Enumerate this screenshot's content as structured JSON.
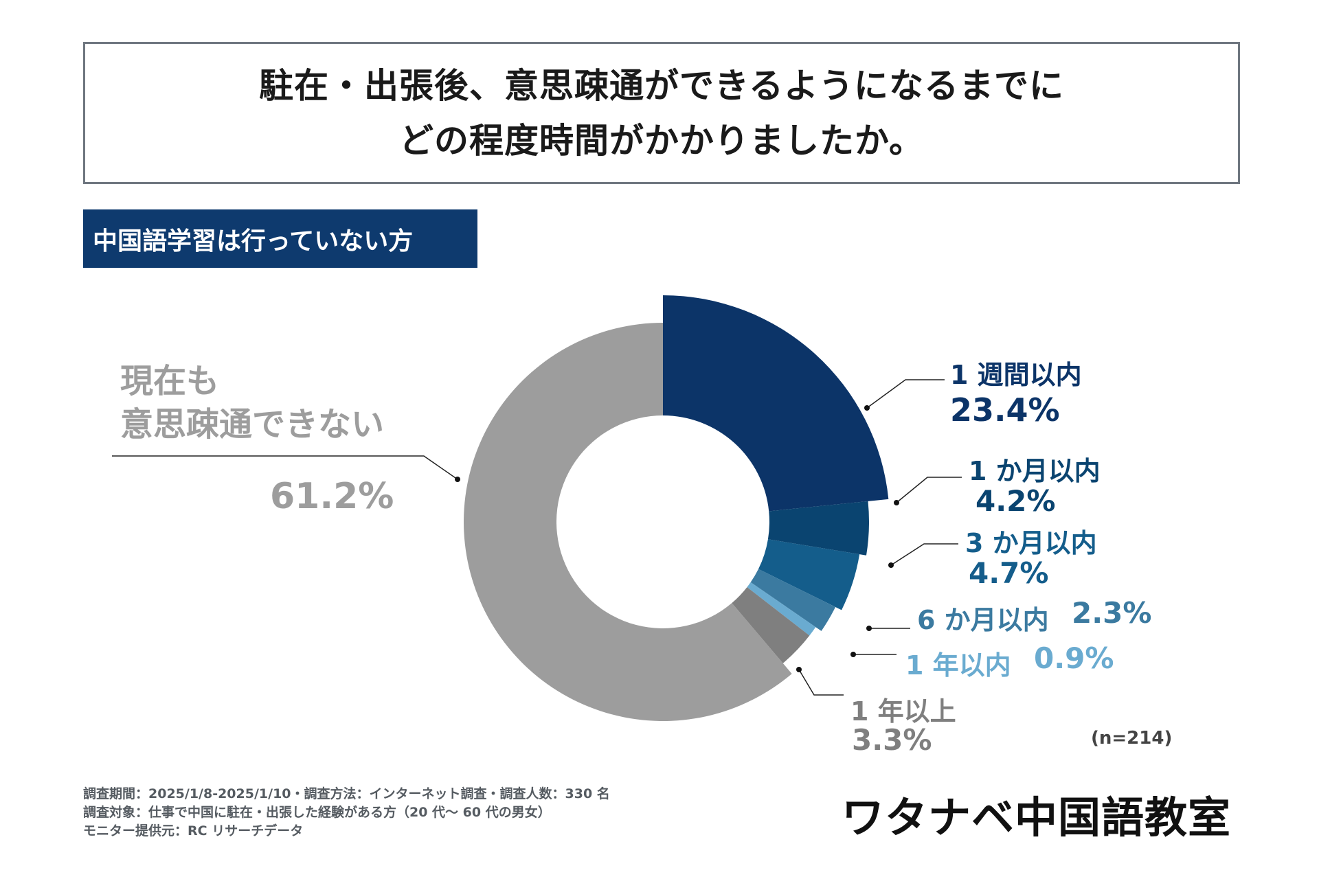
{
  "title": {
    "line1": "駐在・出張後、意思疎通ができるようになるまでに",
    "line2": "どの程度時間がかかりましたか。"
  },
  "subtitle": "中国語学習は行っていない方",
  "chart_data": {
    "type": "pie",
    "title": "駐在・出張後、意思疎通ができるようになるまでに どの程度時間がかかりましたか。",
    "subtitle": "中国語学習は行っていない方",
    "n_label": "(n=214)",
    "slices": [
      {
        "label": "1 週間以内",
        "value": 23.4,
        "value_label": "23.4%",
        "color": "#0c3468"
      },
      {
        "label": "1 か月以内",
        "value": 4.2,
        "value_label": "4.2%",
        "color": "#0a4470"
      },
      {
        "label": "3 か月以内",
        "value": 4.7,
        "value_label": "4.7%",
        "color": "#145d8b"
      },
      {
        "label": "6 か月以内",
        "value": 2.3,
        "value_label": "2.3%",
        "color": "#3b7aa0"
      },
      {
        "label": "1 年以内",
        "value": 0.9,
        "value_label": "0.9%",
        "color": "#6aabd0"
      },
      {
        "label": "1 年以上",
        "value": 3.3,
        "value_label": "3.3%",
        "color": "#7f7f7f"
      },
      {
        "label": "現在も意思疎通できない",
        "label_line1": "現在も",
        "label_line2": "意思疎通できない",
        "value": 61.2,
        "value_label": "61.2%",
        "color": "#9d9d9d"
      }
    ]
  },
  "footnotes": {
    "line1": "調査期間：2025/1/8-2025/1/10・調査方法：インターネット調査・調査人数：330 名",
    "line2": "調査対象：仕事で中国に駐在・出張した経験がある方（20 代～ 60 代の男女）",
    "line3": "モニター提供元：RC リサーチデータ"
  },
  "brand": "ワタナベ中国語教室"
}
